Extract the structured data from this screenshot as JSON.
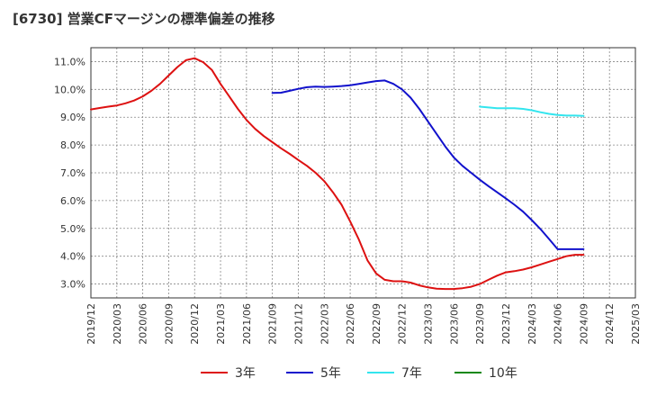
{
  "title": "[6730]  営業CFマージンの標準偏差の推移",
  "chart_data": {
    "type": "line",
    "title": "[6730]  営業CFマージンの標準偏差の推移",
    "xlabel": "",
    "ylabel": "",
    "x_ticks": [
      "2019/12",
      "2020/03",
      "2020/06",
      "2020/09",
      "2020/12",
      "2021/03",
      "2021/06",
      "2021/09",
      "2021/12",
      "2022/03",
      "2022/06",
      "2022/09",
      "2022/12",
      "2023/03",
      "2023/06",
      "2023/09",
      "2023/12",
      "2024/03",
      "2024/06",
      "2024/09",
      "2024/12",
      "2025/03"
    ],
    "y_ticks": [
      "3.0%",
      "4.0%",
      "5.0%",
      "6.0%",
      "7.0%",
      "8.0%",
      "9.0%",
      "10.0%",
      "11.0%"
    ],
    "ylim": [
      2.5,
      11.5
    ],
    "grid": true,
    "legend_position": "bottom",
    "series": [
      {
        "name": "3年",
        "color": "#dd1111",
        "x": [
          "2019/12",
          "2020/01",
          "2020/02",
          "2020/03",
          "2020/04",
          "2020/05",
          "2020/06",
          "2020/07",
          "2020/08",
          "2020/09",
          "2020/10",
          "2020/11",
          "2020/12",
          "2021/01",
          "2021/02",
          "2021/03",
          "2021/04",
          "2021/05",
          "2021/06",
          "2021/07",
          "2021/08",
          "2021/09",
          "2021/10",
          "2021/11",
          "2021/12",
          "2022/01",
          "2022/02",
          "2022/03",
          "2022/04",
          "2022/05",
          "2022/06",
          "2022/07",
          "2022/08",
          "2022/09",
          "2022/10",
          "2022/11",
          "2022/12",
          "2023/01",
          "2023/02",
          "2023/03",
          "2023/04",
          "2023/05",
          "2023/06",
          "2023/07",
          "2023/08",
          "2023/09",
          "2023/10",
          "2023/11",
          "2023/12",
          "2024/01",
          "2024/02",
          "2024/03",
          "2024/04",
          "2024/05",
          "2024/06",
          "2024/07",
          "2024/08",
          "2024/09"
        ],
        "values": [
          9.28,
          9.33,
          9.38,
          9.42,
          9.5,
          9.6,
          9.75,
          9.95,
          10.2,
          10.5,
          10.8,
          11.05,
          11.12,
          10.98,
          10.7,
          10.2,
          9.75,
          9.3,
          8.9,
          8.58,
          8.32,
          8.1,
          7.88,
          7.68,
          7.46,
          7.25,
          7.0,
          6.7,
          6.3,
          5.85,
          5.25,
          4.6,
          3.85,
          3.38,
          3.15,
          3.1,
          3.1,
          3.05,
          2.95,
          2.88,
          2.83,
          2.82,
          2.82,
          2.85,
          2.9,
          3.0,
          3.15,
          3.3,
          3.42,
          3.46,
          3.52,
          3.6,
          3.7,
          3.8,
          3.9,
          4.0,
          4.05,
          4.05
        ]
      },
      {
        "name": "5年",
        "color": "#1111cc",
        "x": [
          "2021/09",
          "2021/10",
          "2021/11",
          "2021/12",
          "2022/01",
          "2022/02",
          "2022/03",
          "2022/04",
          "2022/05",
          "2022/06",
          "2022/07",
          "2022/08",
          "2022/09",
          "2022/10",
          "2022/11",
          "2022/12",
          "2023/01",
          "2023/02",
          "2023/03",
          "2023/04",
          "2023/05",
          "2023/06",
          "2023/07",
          "2023/08",
          "2023/09",
          "2023/10",
          "2023/11",
          "2023/12",
          "2024/01",
          "2024/02",
          "2024/03",
          "2024/04",
          "2024/05",
          "2024/06",
          "2024/07",
          "2024/08",
          "2024/09"
        ],
        "values": [
          9.87,
          9.88,
          9.95,
          10.02,
          10.08,
          10.1,
          10.09,
          10.1,
          10.12,
          10.15,
          10.2,
          10.25,
          10.3,
          10.32,
          10.2,
          10.0,
          9.7,
          9.3,
          8.85,
          8.4,
          7.95,
          7.55,
          7.25,
          7.0,
          6.75,
          6.52,
          6.3,
          6.08,
          5.85,
          5.6,
          5.3,
          4.98,
          4.62,
          4.25,
          4.25,
          4.25,
          4.25
        ]
      },
      {
        "name": "7年",
        "color": "#33e5ee",
        "x": [
          "2023/09",
          "2023/10",
          "2023/11",
          "2023/12",
          "2024/01",
          "2024/02",
          "2024/03",
          "2024/04",
          "2024/05",
          "2024/06",
          "2024/07",
          "2024/08",
          "2024/09"
        ],
        "values": [
          9.38,
          9.35,
          9.32,
          9.32,
          9.32,
          9.3,
          9.25,
          9.18,
          9.12,
          9.08,
          9.06,
          9.06,
          9.05
        ]
      },
      {
        "name": "10年",
        "color": "#118811",
        "x": [],
        "values": []
      }
    ]
  }
}
